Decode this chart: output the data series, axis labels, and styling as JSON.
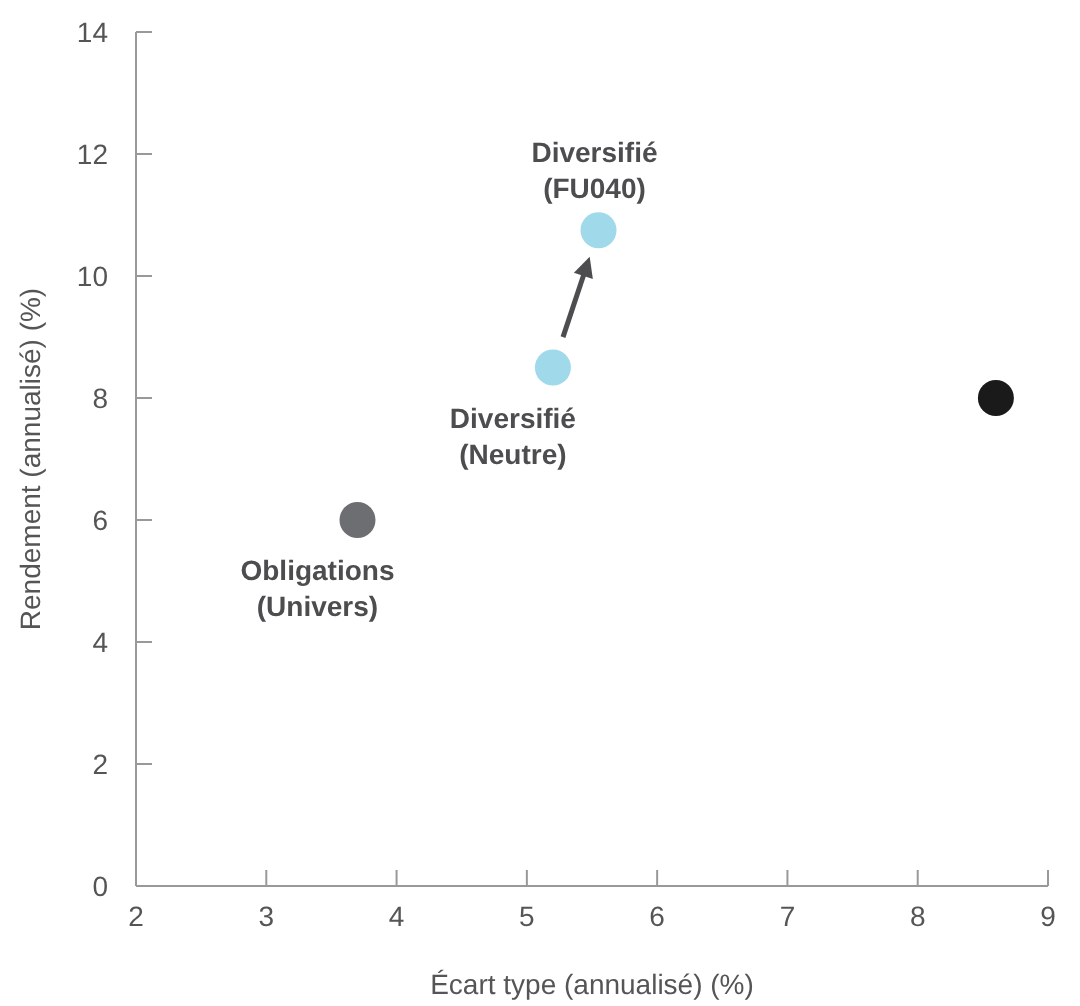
{
  "chart_data": {
    "type": "scatter",
    "xlabel": "Écart type (annualisé) (%)",
    "ylabel": "Rendement (annualisé) (%)",
    "xlim": [
      2,
      9
    ],
    "xticks": [
      2,
      3,
      4,
      5,
      6,
      7,
      8,
      9
    ],
    "ylim": [
      0,
      14
    ],
    "yticks": [
      0,
      2,
      4,
      6,
      8,
      10,
      12,
      14
    ],
    "grid": false,
    "marker": "circle",
    "series": [
      {
        "name": "Obligations\n(Univers)",
        "color": "#6d6e71",
        "x": [
          3.7
        ],
        "values": [
          6.0
        ]
      },
      {
        "name": "Diversifié\n(Neutre)",
        "color": "#9fd9ea",
        "x": [
          5.2
        ],
        "values": [
          8.5
        ]
      },
      {
        "name": "Diversifié\n(FU040)",
        "color": "#9fd9ea",
        "x": [
          5.55
        ],
        "values": [
          10.75
        ]
      },
      {
        "color": "#1a1a1a",
        "x": [
          8.6
        ],
        "values": [
          8.0
        ]
      }
    ]
  }
}
